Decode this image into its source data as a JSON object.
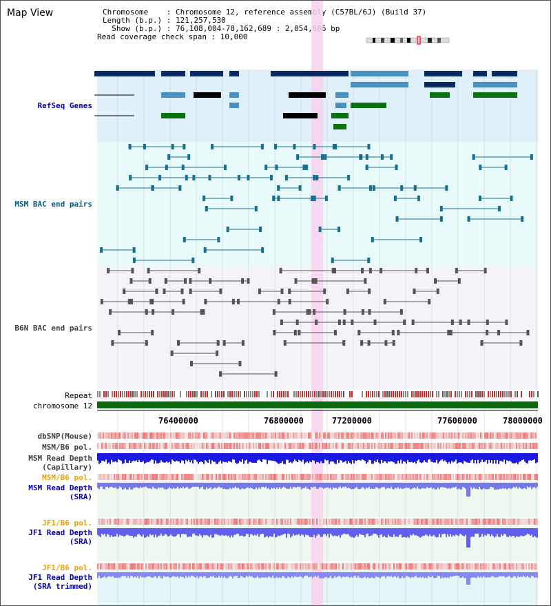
{
  "view_title": "Map View",
  "info": {
    "chromosome": "Chromosome    : Chromosome 12, reference assembly (C57BL/6J) (Build 37)",
    "length": "Length (b.p.) : 121,257,530",
    "show": "  Show (b.p.) : 76,108,004-78,162,689 : 2,054,686 bp",
    "coverage": "Read coverage check span : 10,000"
  },
  "tracks": {
    "refseq": "RefSeq Genes",
    "msm_bac": "MSM BAC end pairs",
    "b6n_bac": "B6N BAC end pairs",
    "repeat": "Repeat",
    "chromosome": "chromosome 12",
    "dbsnp": "dbSNP(Mouse)",
    "msm_b6_pol_1": "MSM/B6 pol.",
    "msm_read_depth_cap": "MSM Read Depth\n(Capillary)",
    "msm_b6_pol_2": "MSM/B6 pol.",
    "msm_read_depth_sra": "MSM Read Depth\n(SRA)",
    "jf1_b6_pol_1": "JF1/B6 pol.",
    "jf1_read_depth_sra": "JF1 Read Depth\n(SRA)",
    "jf1_b6_pol_2": "JF1/B6 pol.",
    "jf1_read_depth_trimmed": "JF1 Read Depth\n(SRA trimmed)"
  },
  "axis_ticks": [
    "76400000",
    "76800000",
    "77200000",
    "77600000",
    "78000000"
  ],
  "colors": {
    "refseq_bg": "#dff0fa",
    "msm_bg": "#e8fafa",
    "b6n_bg": "#f4f4f8",
    "gene_dark": "#0a2a60",
    "gene_mid": "#4a90c0",
    "gene_green": "#0a7010",
    "highlight": "#f7d2ee",
    "chromosome_bar": "#0a6a10"
  }
}
